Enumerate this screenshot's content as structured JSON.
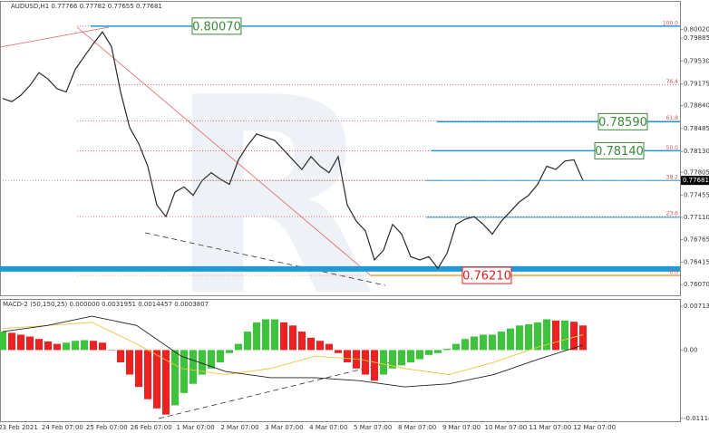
{
  "chart_data": [
    {
      "type": "line",
      "title": "AUDUSD,H1  0.77766 0.77782 0.77655 0.77681",
      "series": [
        {
          "color": "#2a2a2a",
          "values": [
            0.7895,
            0.789,
            0.79,
            0.7915,
            0.7935,
            0.7925,
            0.791,
            0.7905,
            0.794,
            0.796,
            0.798,
            0.7998,
            0.7975,
            0.7905,
            0.785,
            0.7825,
            0.779,
            0.773,
            0.7712,
            0.775,
            0.7758,
            0.7745,
            0.7768,
            0.778,
            0.777,
            0.7762,
            0.78,
            0.7822,
            0.784,
            0.7835,
            0.783,
            0.7815,
            0.78,
            0.7785,
            0.7805,
            0.779,
            0.778,
            0.7805,
            0.773,
            0.7705,
            0.769,
            0.7645,
            0.766,
            0.77,
            0.7685,
            0.765,
            0.7645,
            0.765,
            0.7632,
            0.7655,
            0.77,
            0.7708,
            0.7712,
            0.77,
            0.7685,
            0.7705,
            0.772,
            0.7735,
            0.7745,
            0.7762,
            0.779,
            0.7785,
            0.7798,
            0.78,
            0.7768
          ]
        }
      ],
      "ylim": [
        0.75916,
        0.80334
      ],
      "yticks": [
        {
          "value": 0.8002,
          "label": "0.80020"
        },
        0.79885,
        {
          "value": 0.7953,
          "label": "0.79530"
        },
        0.79175,
        {
          "value": 0.7884,
          "label": "0.78840"
        },
        0.78485,
        {
          "value": 0.7813,
          "label": "0.78130"
        },
        0.77805,
        0.77455,
        {
          "value": 0.7711,
          "label": "0.77110"
        },
        0.76765,
        0.76415,
        {
          "value": 0.7607,
          "label": "0.76070"
        }
      ],
      "fib_color": "#e05050",
      "fib_levels": [
        {
          "label": "100.0",
          "value": 0.8007
        },
        {
          "label": "76.4",
          "value": 0.7916
        },
        {
          "label": "61.8",
          "value": 0.786
        },
        {
          "label": "50.0",
          "value": 0.7814
        },
        {
          "label": "38.2",
          "value": 0.7768
        },
        {
          "label": "23.6",
          "value": 0.7712
        },
        {
          "label": "0.0",
          "value": 0.7621
        }
      ],
      "level_color": "#1e9bd7",
      "price_levels": [
        {
          "value": 0.8007,
          "label": "0.80070",
          "color": "#3a8a3a"
        },
        {
          "value": 0.7859,
          "label": "0.78590",
          "color": "#3a8a3a"
        },
        {
          "value": 0.7814,
          "label": "0.78140",
          "color": "#3a8a3a"
        },
        {
          "value": 0.7621,
          "label": "0.76210",
          "color": "#e02020"
        }
      ],
      "support_lines": [
        0.7768,
        0.7711
      ],
      "zone": 0.7631,
      "current_price": 0.77681
    },
    {
      "type": "bar",
      "title": "MACD-2 (50,150,25) 0.000000 0.0031951 0.0014457 0.0003807",
      "values": [
        0.003,
        0.0028,
        0.0025,
        0.0022,
        0.0018,
        0.0014,
        0.001,
        0.0012,
        0.0015,
        0.0016,
        0.0015,
        0.0012,
        0.0,
        -0.002,
        -0.004,
        -0.006,
        -0.008,
        -0.0095,
        -0.0105,
        -0.009,
        -0.007,
        -0.0055,
        -0.004,
        -0.003,
        -0.002,
        -0.0005,
        0.001,
        0.003,
        0.0045,
        0.005,
        0.005,
        0.0045,
        0.004,
        0.003,
        0.002,
        0.0015,
        0.001,
        -0.0005,
        -0.002,
        -0.003,
        -0.004,
        -0.005,
        -0.004,
        -0.003,
        -0.0025,
        -0.002,
        -0.0015,
        -0.0008,
        -0.0005,
        0.0002,
        0.001,
        0.0018,
        0.0022,
        0.0025,
        0.0025,
        0.003,
        0.0035,
        0.004,
        0.0042,
        0.0045,
        0.005,
        0.0048,
        0.0048,
        0.0046,
        0.004
      ],
      "up_color": "#3cc43c",
      "down_color": "#ee2020",
      "lines": [
        {
          "color": "#e8c840",
          "values": [
            0.0035,
            0.004,
            0.0045,
            0.001,
            -0.003,
            -0.004,
            -0.003,
            -0.001,
            -0.0015,
            -0.003,
            -0.004,
            -0.002,
            0.0005,
            0.0025
          ]
        },
        {
          "color": "#222222",
          "values": [
            0.003,
            0.004,
            0.0055,
            0.004,
            -0.001,
            -0.0035,
            -0.0045,
            -0.0045,
            -0.005,
            -0.006,
            -0.0055,
            -0.004,
            -0.0015,
            0.0008
          ]
        }
      ],
      "ylim": [
        -0.011146,
        0.0071371
      ],
      "yticks": [
        0.0071371,
        {
          "value": 0,
          "label": "0.00"
        },
        -0.011146
      ],
      "x_labels": [
        "23 Feb 2021",
        "24 Feb 07:00",
        "25 Feb 07:00",
        "26 Feb 07:00",
        "1 Mar 07:00",
        "2 Mar 07:00",
        "3 Mar 07:00",
        "4 Mar 07:00",
        "5 Mar 07:00",
        "8 Mar 07:00",
        "9 Mar 07:00",
        "10 Mar 07:00",
        "11 Mar 07:00",
        "12 Mar 07:00"
      ]
    }
  ]
}
